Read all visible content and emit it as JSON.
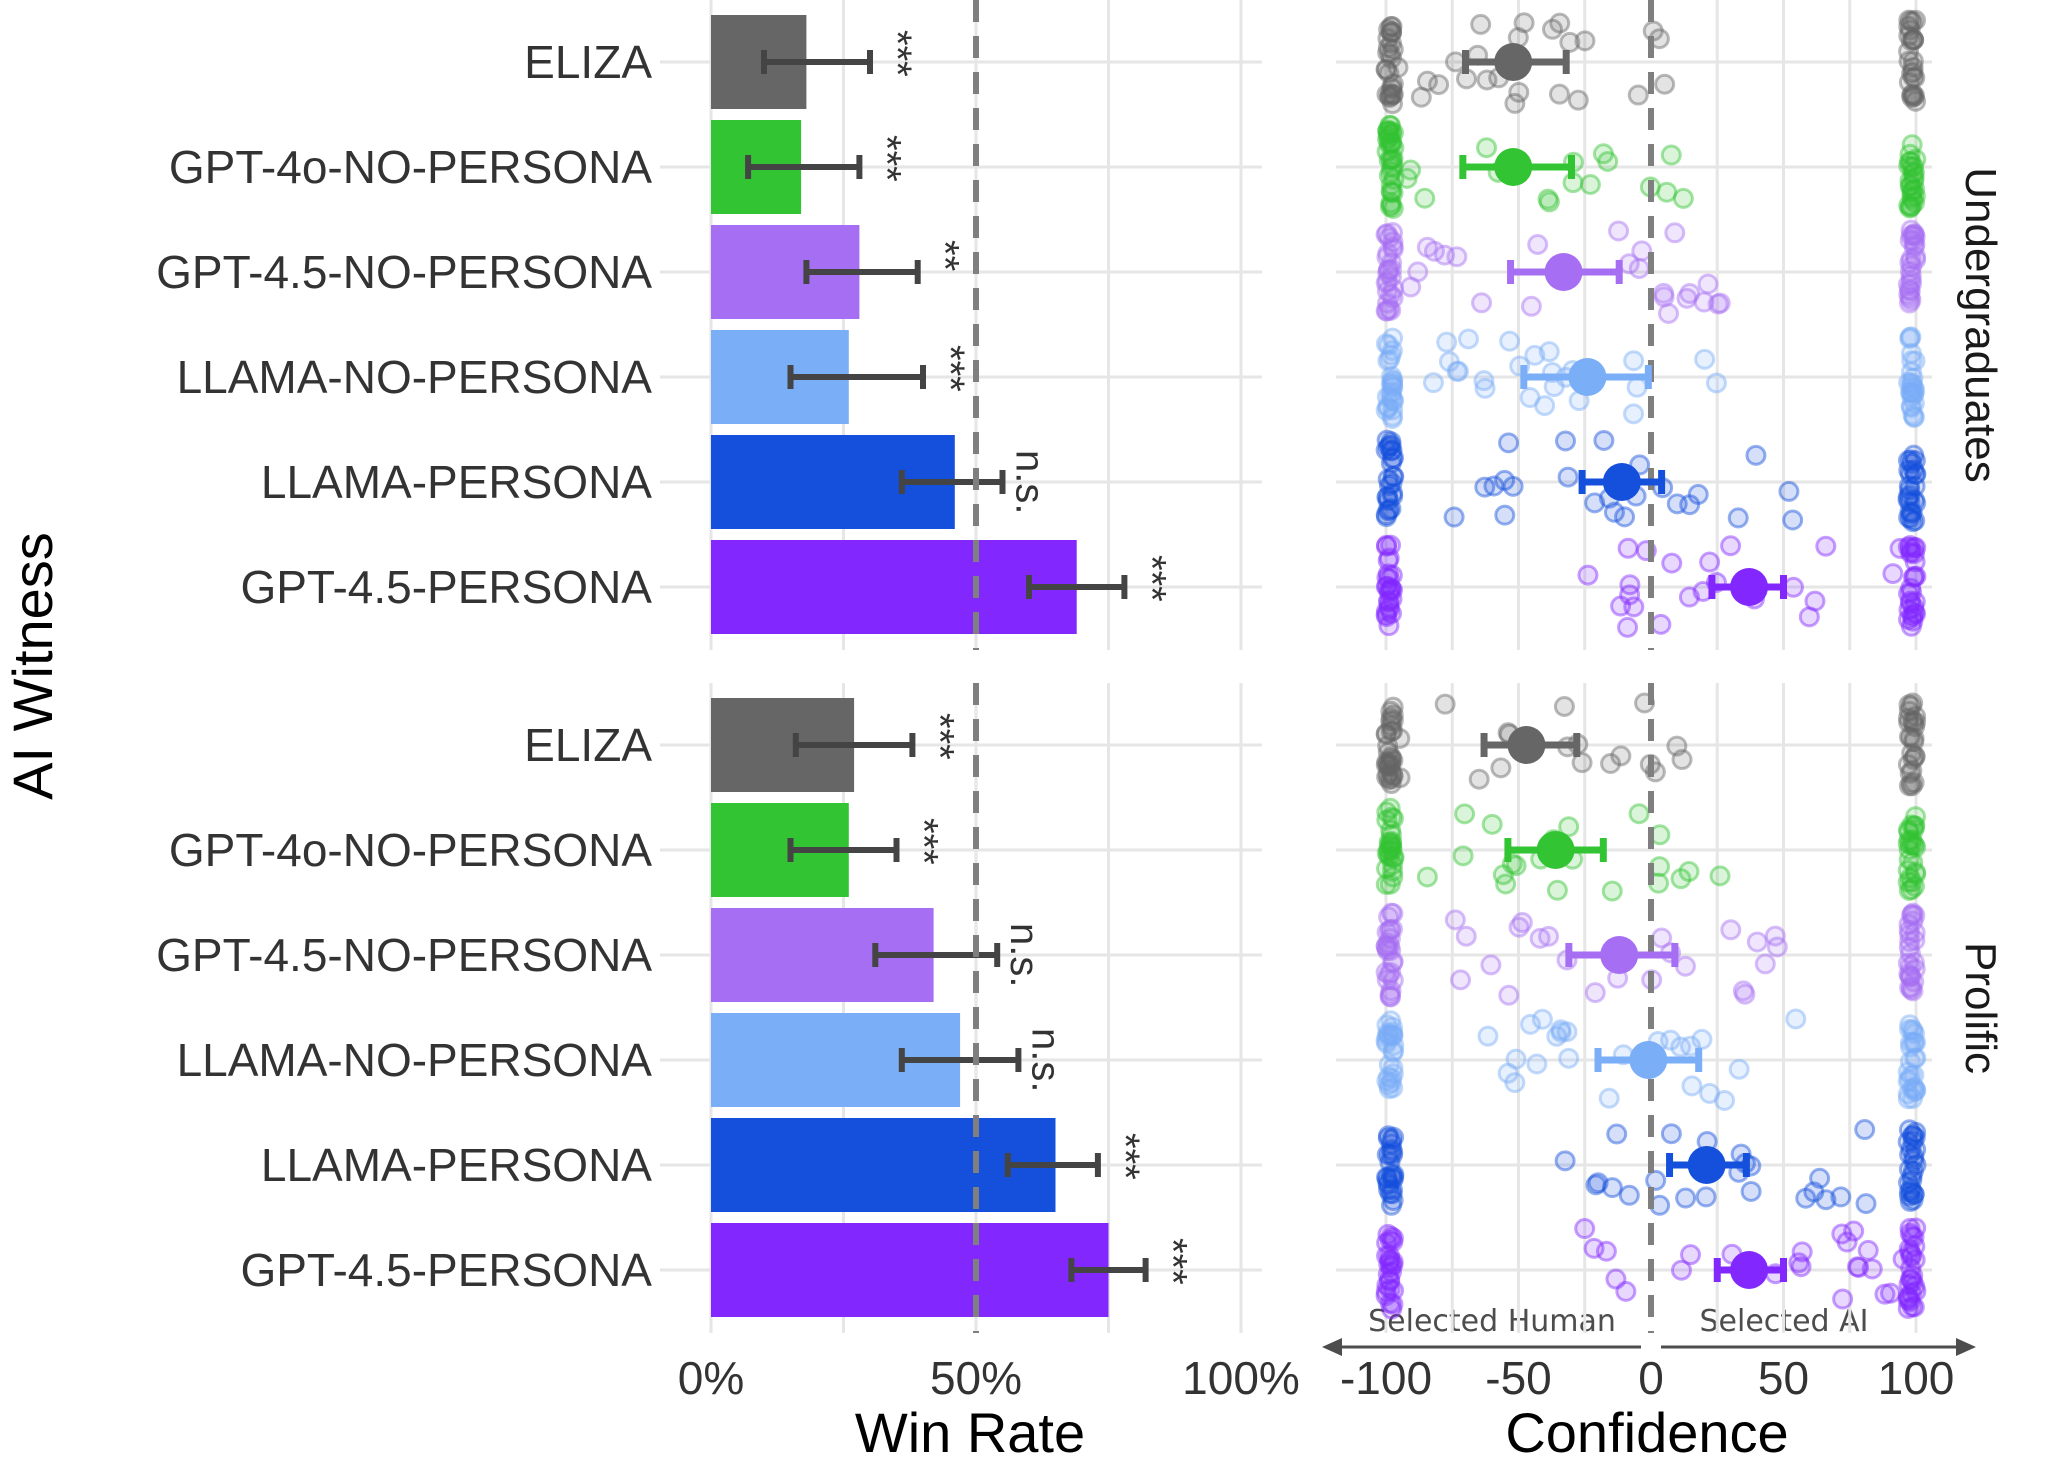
{
  "chart_data": {
    "type": "bar",
    "y_axis_title": "AI Witness",
    "witnesses": [
      "ELIZA",
      "GPT-4o-NO-PERSONA",
      "GPT-4.5-NO-PERSONA",
      "LLAMA-NO-PERSONA",
      "LLAMA-PERSONA",
      "GPT-4.5-PERSONA"
    ],
    "colors": [
      "#666666",
      "#33c433",
      "#a66ef2",
      "#7aaef7",
      "#1550dc",
      "#8228ff"
    ],
    "facets": [
      {
        "name": "Undergraduates",
        "win_rate": [
          0.18,
          0.17,
          0.28,
          0.26,
          0.46,
          0.69
        ],
        "win_rate_ci": [
          [
            0.1,
            0.3
          ],
          [
            0.07,
            0.28
          ],
          [
            0.18,
            0.39
          ],
          [
            0.15,
            0.4
          ],
          [
            0.36,
            0.55
          ],
          [
            0.6,
            0.78
          ]
        ],
        "significance": [
          "***",
          "***",
          "**",
          "***",
          "n.s.",
          "***"
        ],
        "confidence_mean": [
          -52,
          -52,
          -33,
          -24,
          -11,
          37
        ],
        "confidence_ci": [
          [
            -70,
            -32
          ],
          [
            -71,
            -30
          ],
          [
            -53,
            -12
          ],
          [
            -48,
            -1
          ],
          [
            -26,
            4
          ],
          [
            23,
            50
          ]
        ]
      },
      {
        "name": "Prolific",
        "win_rate": [
          0.27,
          0.26,
          0.42,
          0.47,
          0.65,
          0.75
        ],
        "win_rate_ci": [
          [
            0.16,
            0.38
          ],
          [
            0.15,
            0.35
          ],
          [
            0.31,
            0.54
          ],
          [
            0.36,
            0.58
          ],
          [
            0.56,
            0.73
          ],
          [
            0.68,
            0.82
          ]
        ],
        "significance": [
          "***",
          "***",
          "n.s.",
          "n.s.",
          "***",
          "***"
        ],
        "confidence_mean": [
          -47,
          -36,
          -12,
          -1,
          21,
          37
        ],
        "confidence_ci": [
          [
            -63,
            -28
          ],
          [
            -54,
            -18
          ],
          [
            -31,
            9
          ],
          [
            -20,
            18
          ],
          [
            7,
            36
          ],
          [
            25,
            50
          ]
        ]
      }
    ],
    "left_panel": {
      "xlabel": "Win Rate",
      "xlim": [
        0,
        1
      ],
      "ticks": [
        0,
        0.5,
        1
      ],
      "tick_labels": [
        "0%",
        "50%",
        "100%"
      ],
      "reference_line": 0.5
    },
    "right_panel": {
      "type": "scatter",
      "xlabel": "Confidence",
      "xlim": [
        -100,
        100
      ],
      "ticks": [
        -100,
        -50,
        0,
        50,
        100
      ],
      "tick_labels": [
        "-100",
        "-50",
        "0",
        "50",
        "100"
      ],
      "reference_line": 0,
      "arrow_left_label": "Selected Human",
      "arrow_right_label": "Selected AI"
    }
  }
}
